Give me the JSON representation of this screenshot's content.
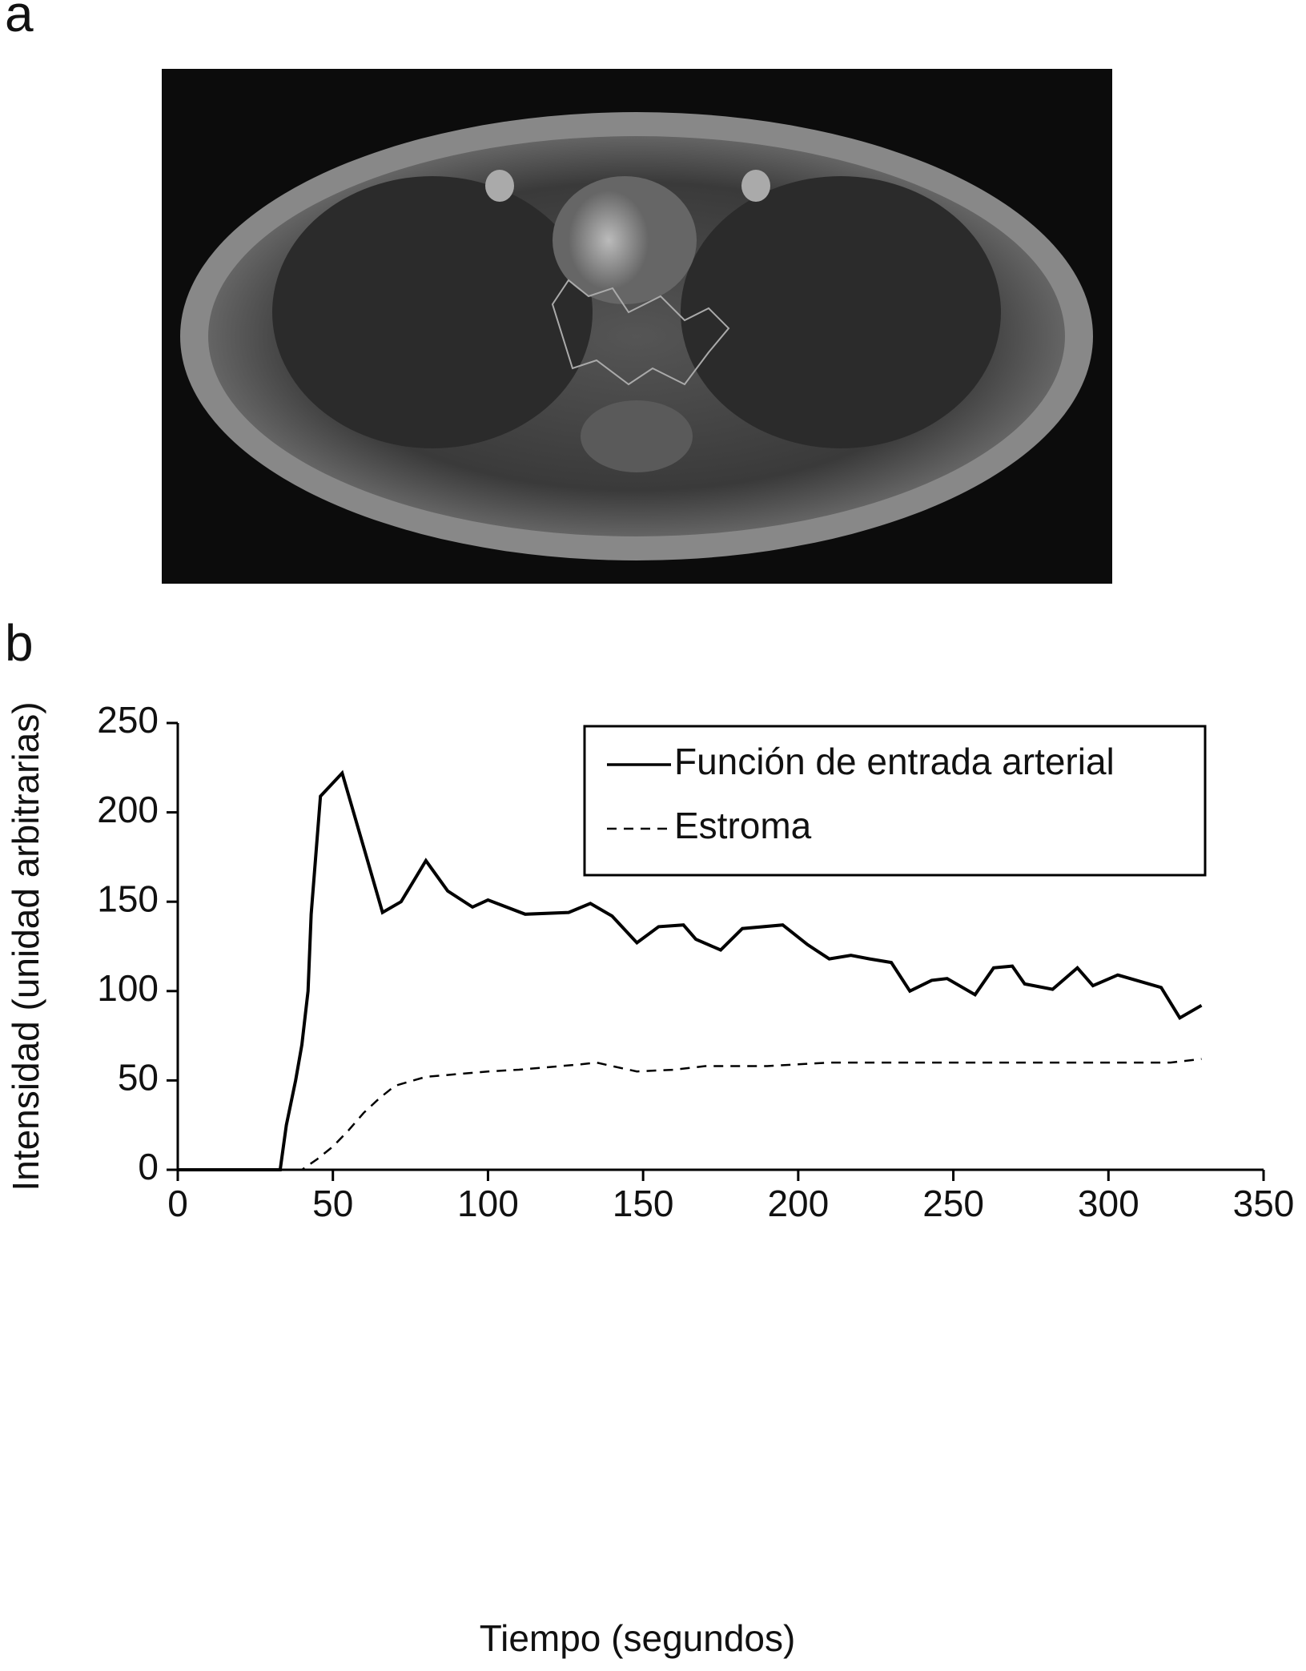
{
  "panel_labels": [
    "a",
    "b"
  ],
  "chart_data": {
    "type": "line",
    "xlabel": "Tiempo (segundos)",
    "ylabel": "Intensidad (unidad arbitrarias)",
    "xlim": [
      0,
      350
    ],
    "xticks": [
      0,
      50,
      100,
      150,
      200,
      250,
      300,
      350
    ],
    "ylim": [
      0,
      250
    ],
    "yticks": [
      0,
      50,
      100,
      150,
      200,
      250
    ],
    "legend": "upper right",
    "series": [
      {
        "name": "Función de entrada arterial",
        "color": "#000000",
        "dash": false,
        "x": [
          0,
          33,
          35,
          38,
          40,
          42,
          43,
          46,
          53,
          60,
          66,
          72,
          80,
          87,
          95,
          100,
          112,
          126,
          133,
          140,
          148,
          155,
          163,
          167,
          175,
          182,
          195,
          203,
          210,
          217,
          223,
          230,
          236,
          243,
          248,
          257,
          263,
          269,
          273,
          282,
          290,
          295,
          303,
          317,
          323,
          330
        ],
        "values": [
          0,
          0,
          25,
          50,
          70,
          100,
          143,
          209,
          222,
          180,
          144,
          150,
          173,
          156,
          147,
          151,
          143,
          144,
          149,
          142,
          127,
          136,
          137,
          129,
          123,
          135,
          137,
          126,
          118,
          120,
          118,
          116,
          100,
          106,
          107,
          98,
          113,
          114,
          104,
          101,
          113,
          103,
          109,
          102,
          85,
          92
        ]
      },
      {
        "name": "Estroma",
        "color": "#000000",
        "dash": true,
        "x": [
          0,
          40,
          45,
          50,
          55,
          60,
          65,
          70,
          80,
          100,
          110,
          130,
          135,
          140,
          148,
          160,
          170,
          190,
          200,
          210,
          320,
          330
        ],
        "values": [
          0,
          0,
          6,
          13,
          22,
          32,
          40,
          47,
          52,
          55,
          56,
          59,
          60,
          58,
          55,
          56,
          58,
          58,
          59,
          60,
          60,
          62
        ]
      }
    ]
  }
}
